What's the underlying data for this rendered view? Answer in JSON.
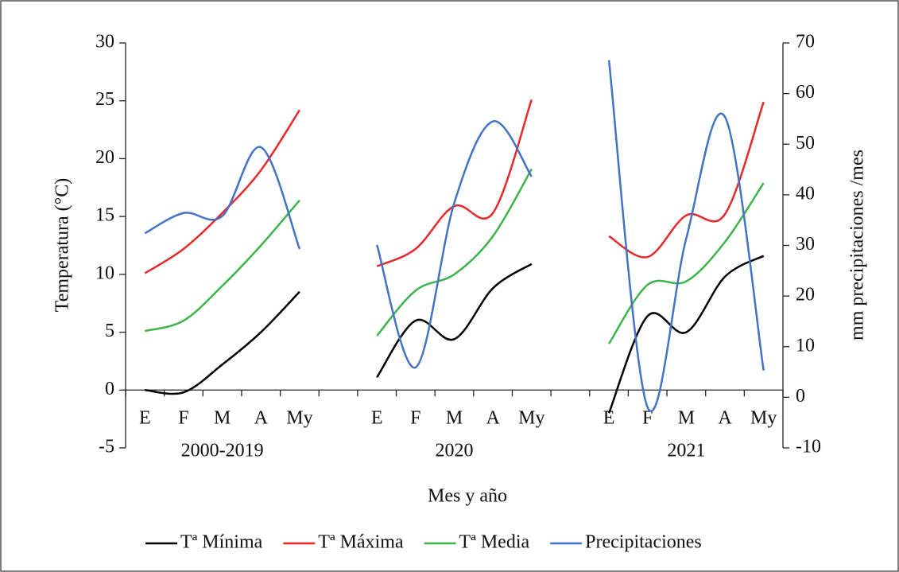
{
  "chart_data": {
    "type": "line",
    "categories": [
      "E",
      "F",
      "M",
      "A",
      "My",
      null,
      "E",
      "F",
      "M",
      "A",
      "My",
      null,
      "E",
      "F",
      "M",
      "A",
      "My"
    ],
    "group_labels": [
      "2000-2019",
      "2020",
      "2021"
    ],
    "xlabel": "Mes y año",
    "ylabel": "Temperatura (°C)",
    "y2label": "mm precipitaciones /mes",
    "ylim": [
      -5,
      30
    ],
    "yticks": [
      -5,
      0,
      5,
      10,
      15,
      20,
      25,
      30
    ],
    "y2lim": [
      -10,
      70
    ],
    "y2ticks": [
      -10,
      0,
      10,
      20,
      30,
      40,
      50,
      60,
      70
    ],
    "legend": "bottom",
    "series": [
      {
        "name": "Tª Mínima",
        "color": "#000000",
        "values": [
          0,
          -0.2,
          2.2,
          5.0,
          8.5,
          null,
          1.1,
          6.0,
          4.4,
          8.8,
          10.9,
          null,
          -2.0,
          6.4,
          5.0,
          9.8,
          11.6
        ]
      },
      {
        "name": "Tª Máxima",
        "color": "#e8282b",
        "values": [
          10.1,
          12.2,
          15.3,
          19.0,
          24.2,
          null,
          10.7,
          12.2,
          15.9,
          15.3,
          25.1,
          null,
          13.3,
          11.5,
          15.1,
          15.2,
          24.9
        ]
      },
      {
        "name": "Tª Media",
        "color": "#3cb44b",
        "values": [
          5.1,
          6.0,
          9.0,
          12.5,
          16.4,
          null,
          4.7,
          8.6,
          10.0,
          13.3,
          19.1,
          null,
          4.0,
          9.1,
          9.4,
          12.8,
          17.9
        ]
      },
      {
        "name": "Precipitaciones",
        "color": "#4472c4",
        "axis": "y2",
        "values": [
          32.4,
          36.4,
          35.8,
          49.4,
          29.3,
          null,
          30.1,
          5.9,
          38.4,
          54.5,
          43.6,
          null,
          66.6,
          -2.0,
          31.4,
          55.4,
          5.3
        ]
      }
    ]
  }
}
